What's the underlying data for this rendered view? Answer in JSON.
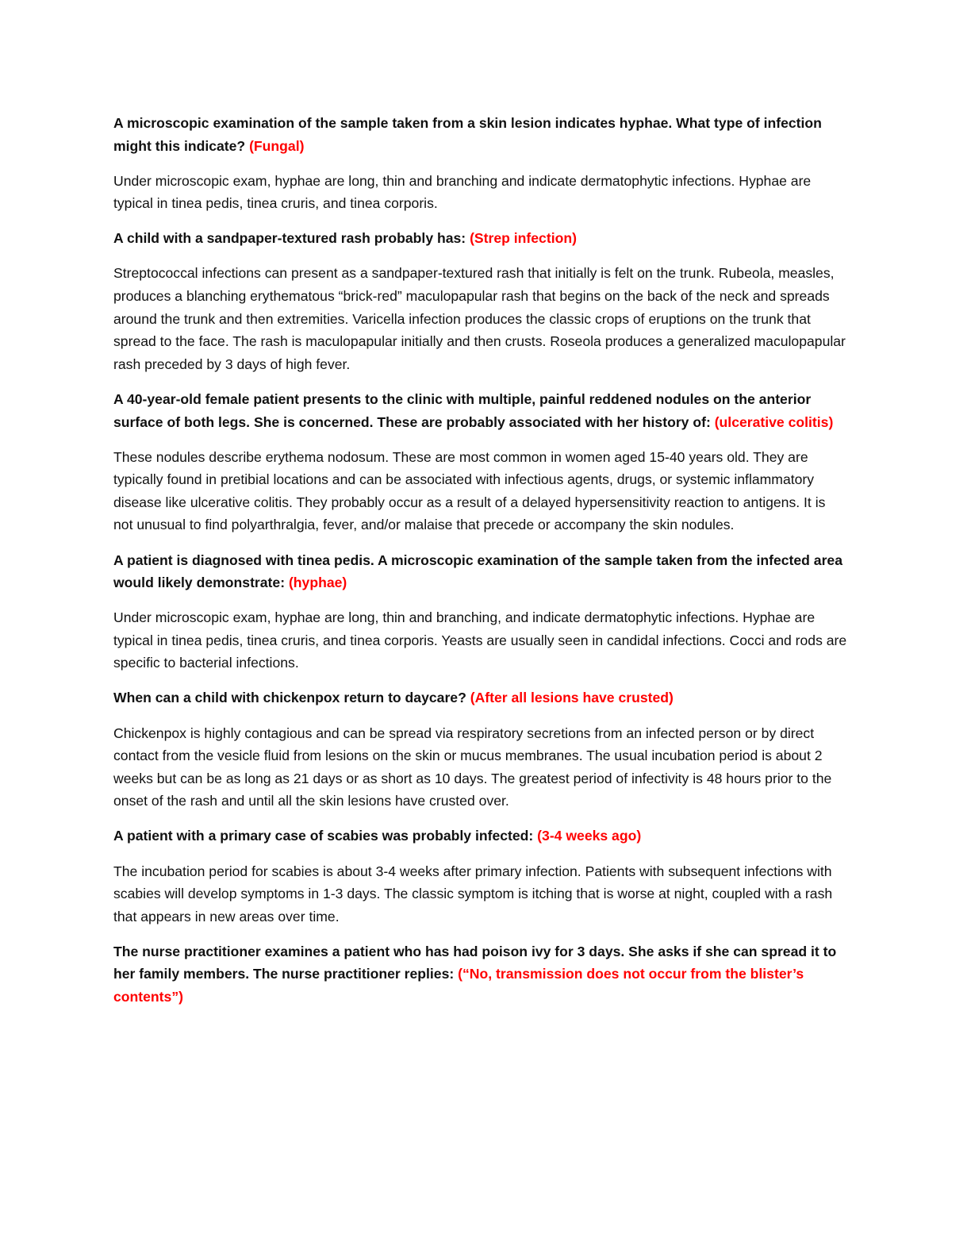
{
  "items": [
    {
      "question": "A microscopic examination of the sample taken from a skin lesion indicates hyphae. What type of infection might this indicate?",
      "answer": "(Fungal)",
      "explanation": "Under microscopic exam, hyphae are long, thin and branching and indicate dermatophytic infections. Hyphae are typical in tinea pedis, tinea cruris, and tinea corporis."
    },
    {
      "question": "A child with a sandpaper-textured rash probably has:",
      "answer": "(Strep infection)",
      "explanation": "Streptococcal infections can present as a sandpaper-textured rash that initially is felt on the trunk. Rubeola, measles, produces a blanching erythematous “brick-red” maculopapular rash that begins on the back of the neck and spreads around the trunk and then extremities. Varicella infection produces the classic crops of eruptions on the trunk that spread to the face. The rash is maculopapular initially and then crusts. Roseola produces a generalized maculopapular rash preceded by 3 days of high fever."
    },
    {
      "question": "A 40-year-old female patient presents to the clinic with multiple, painful reddened nodules on the anterior surface of both legs. She is concerned. These are probably associated with her history of:",
      "answer": "(ulcerative colitis)",
      "explanation": "These nodules describe erythema nodosum. These are most common in women aged 15-40 years old. They are typically found in pretibial locations and can be associated with infectious agents, drugs, or systemic inflammatory disease like ulcerative colitis. They probably occur as a result of a delayed hypersensitivity reaction to antigens. It is not unusual to find polyarthralgia, fever, and/or malaise that precede or accompany the skin nodules."
    },
    {
      "question": "A patient is diagnosed with tinea pedis. A microscopic examination of the sample taken from the infected area would likely demonstrate:",
      "answer": "(hyphae)",
      "explanation": "Under microscopic exam, hyphae are long, thin and branching, and indicate dermatophytic infections. Hyphae are typical in tinea pedis, tinea cruris, and tinea corporis. Yeasts are usually seen in candidal infections. Cocci and rods are specific to bacterial infections."
    },
    {
      "question": "When can a child with chickenpox return to daycare?",
      "answer": "(After all lesions have crusted)",
      "explanation": "Chickenpox is highly contagious and can be spread via respiratory secretions from an infected person or by direct contact from the vesicle fluid from lesions on the skin or mucus membranes. The usual incubation period is about 2 weeks but can be as long as 21 days or as short as 10 days. The greatest period of infectivity is 48 hours prior to the onset of the rash and until all the skin lesions have crusted over."
    },
    {
      "question": "A patient with a primary case of scabies was probably infected:",
      "answer": "(3-4 weeks ago)",
      "explanation": "The incubation period for scabies is about 3-4 weeks after primary infection. Patients with subsequent infections with scabies will develop symptoms in 1-3 days. The classic symptom is itching that is worse at night, coupled with a rash that appears in new areas over time."
    },
    {
      "question": "The nurse practitioner examines a patient who has had poison ivy for 3 days. She asks if she can spread it to her family members. The nurse practitioner replies:",
      "answer": "(“No, transmission does not occur from the blister’s contents”)"
    }
  ],
  "colors": {
    "answer": "#ff0000",
    "text": "#111111"
  }
}
